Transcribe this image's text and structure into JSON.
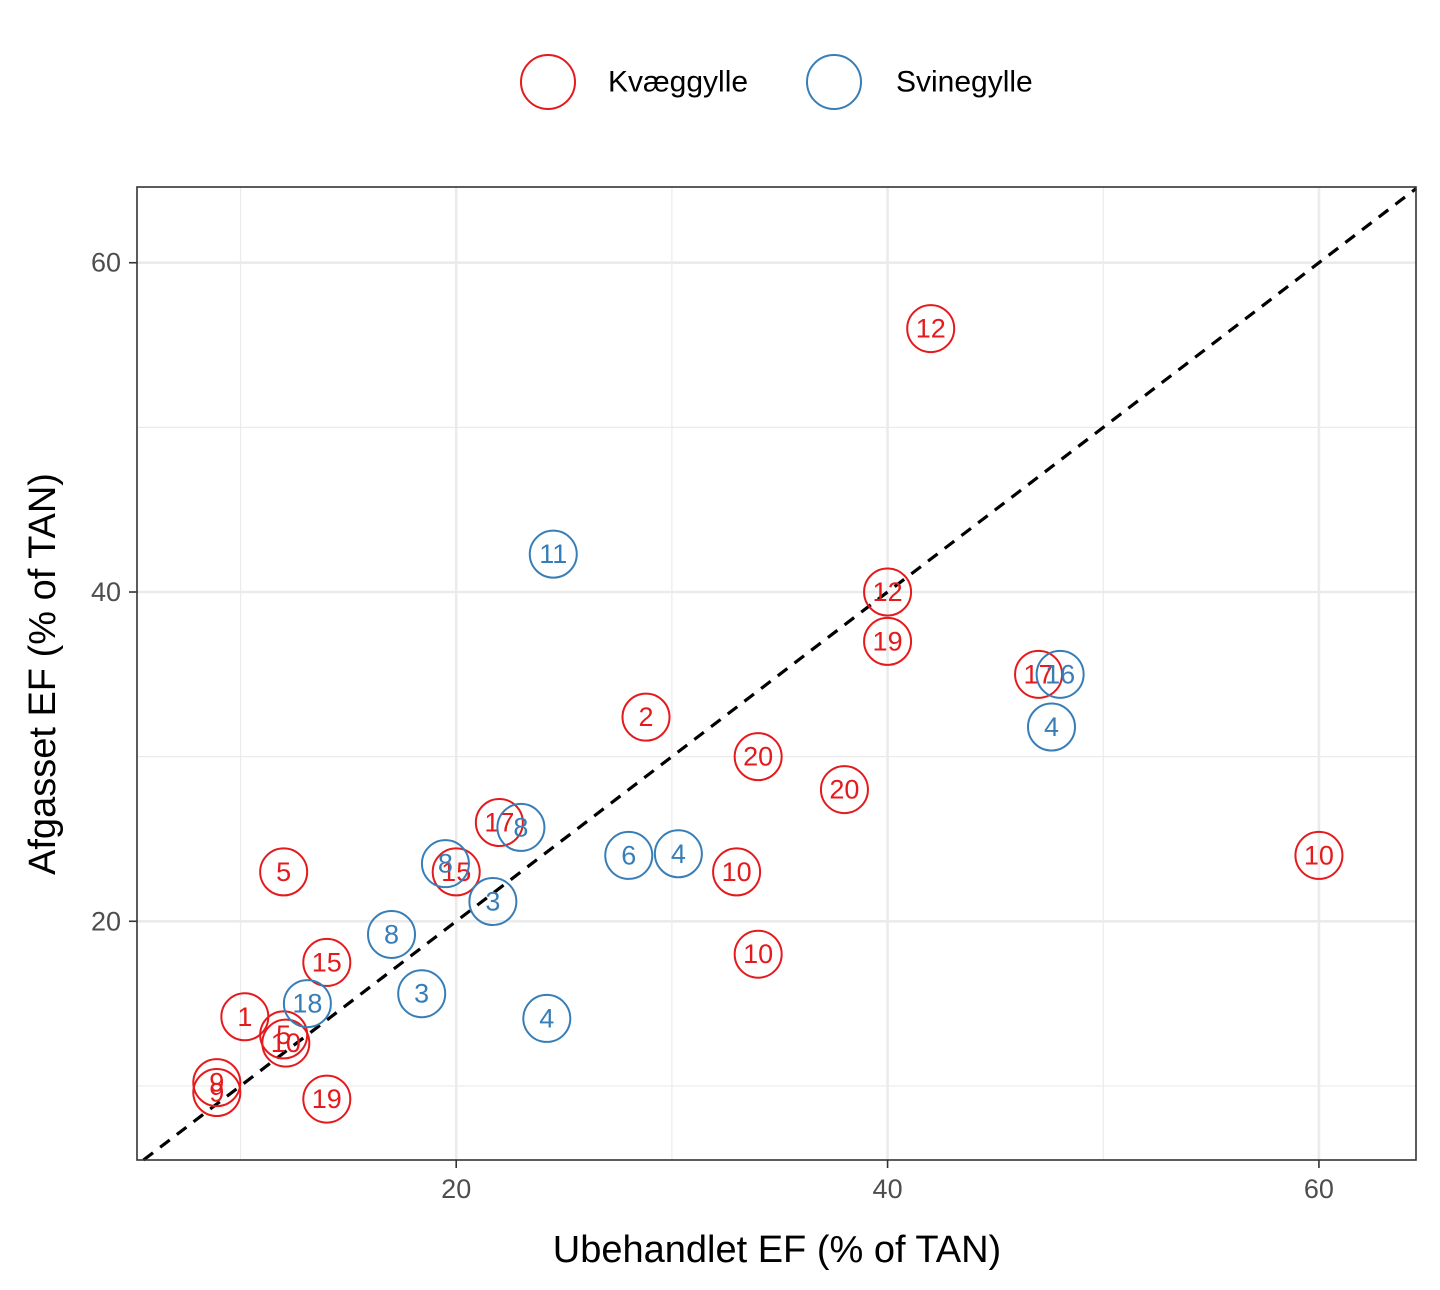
{
  "chart_data": {
    "type": "scatter",
    "xlabel": "Ubehandlet EF (% of TAN)",
    "ylabel": "Afgasset EF (% of TAN)",
    "xlim": [
      5.2,
      64.5
    ],
    "ylim": [
      5.5,
      64.6
    ],
    "x_ticks": [
      20,
      40,
      60
    ],
    "y_ticks": [
      20,
      40,
      60
    ],
    "x_tick_labels": [
      "20",
      "40",
      "60"
    ],
    "y_tick_labels": [
      "20",
      "40",
      "60"
    ],
    "grid": true,
    "legend_position": "top",
    "reference_line": "y = x (dashed)",
    "series": [
      {
        "name": "Kvæggylle",
        "color": "#e41a1c",
        "points": [
          {
            "x": 42.0,
            "y": 56.0,
            "label": "12"
          },
          {
            "x": 40.0,
            "y": 40.0,
            "label": "12"
          },
          {
            "x": 40.0,
            "y": 37.0,
            "label": "19"
          },
          {
            "x": 47.0,
            "y": 35.0,
            "label": "17"
          },
          {
            "x": 28.8,
            "y": 32.4,
            "label": "2"
          },
          {
            "x": 34.0,
            "y": 30.0,
            "label": "20"
          },
          {
            "x": 38.0,
            "y": 28.0,
            "label": "20"
          },
          {
            "x": 22.0,
            "y": 26.0,
            "label": "17"
          },
          {
            "x": 60.0,
            "y": 24.0,
            "label": "10"
          },
          {
            "x": 33.0,
            "y": 23.0,
            "label": "10"
          },
          {
            "x": 12.0,
            "y": 23.0,
            "label": "5"
          },
          {
            "x": 20.0,
            "y": 23.0,
            "label": "15"
          },
          {
            "x": 34.0,
            "y": 18.0,
            "label": "10"
          },
          {
            "x": 14.0,
            "y": 17.5,
            "label": "15"
          },
          {
            "x": 10.2,
            "y": 14.2,
            "label": "1"
          },
          {
            "x": 12.0,
            "y": 13.1,
            "label": "5"
          },
          {
            "x": 12.1,
            "y": 12.6,
            "label": "10"
          },
          {
            "x": 8.9,
            "y": 10.2,
            "label": "9"
          },
          {
            "x": 8.9,
            "y": 9.6,
            "label": "9"
          },
          {
            "x": 14.0,
            "y": 9.2,
            "label": "19"
          }
        ]
      },
      {
        "name": "Svinegylle",
        "color": "#377eb8",
        "points": [
          {
            "x": 24.5,
            "y": 42.3,
            "label": "11"
          },
          {
            "x": 48.0,
            "y": 35.0,
            "label": "16"
          },
          {
            "x": 47.6,
            "y": 31.8,
            "label": "4"
          },
          {
            "x": 23.0,
            "y": 25.7,
            "label": "8"
          },
          {
            "x": 28.0,
            "y": 24.0,
            "label": "6"
          },
          {
            "x": 30.3,
            "y": 24.1,
            "label": "4"
          },
          {
            "x": 19.5,
            "y": 23.5,
            "label": "8"
          },
          {
            "x": 21.7,
            "y": 21.2,
            "label": "3"
          },
          {
            "x": 17.0,
            "y": 19.2,
            "label": "8"
          },
          {
            "x": 18.4,
            "y": 15.6,
            "label": "3"
          },
          {
            "x": 24.2,
            "y": 14.1,
            "label": "4"
          },
          {
            "x": 13.1,
            "y": 15.0,
            "label": "18"
          }
        ]
      }
    ]
  }
}
